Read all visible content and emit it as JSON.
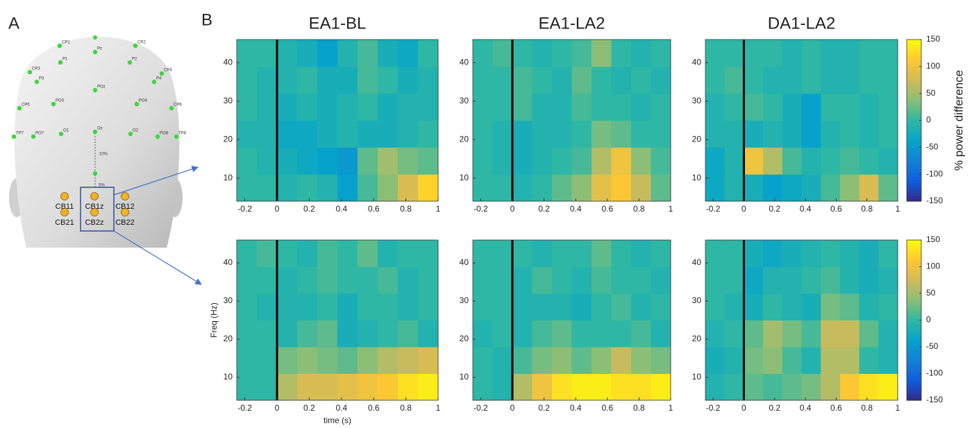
{
  "panel_labels": [
    "A",
    "B"
  ],
  "electrodes": {
    "scalp_labels": [
      "CP1",
      "CP2",
      "Pz",
      "P1",
      "P2",
      "CP3",
      "CP4",
      "P3",
      "P4",
      "POz",
      "PO3",
      "PO4",
      "CP5",
      "CP6",
      "PO7",
      "O1",
      "Oz",
      "O2",
      "PO8",
      "TP7",
      "TP8"
    ],
    "spacing_labels": [
      "10%",
      "5%"
    ],
    "cerebellar_labels": [
      "CB11",
      "CB1z",
      "CB12",
      "CB21",
      "CB2z",
      "CB22"
    ]
  },
  "chart_data": [
    {
      "type": "heatmap",
      "title": "EA1-BL",
      "colormap": "parula",
      "clim": [
        -150,
        150
      ],
      "event_x": 0,
      "xlim": [
        -0.25,
        1.0
      ],
      "xticks": [
        -0.2,
        0,
        0.2,
        0.4,
        0.6,
        0.8,
        1
      ],
      "ylim": [
        4,
        46
      ],
      "yticks": [
        10,
        20,
        30,
        40
      ],
      "xbins": [
        -0.25,
        -0.125,
        0,
        0.125,
        0.25,
        0.375,
        0.5,
        0.625,
        0.75,
        0.875,
        1.0
      ],
      "ybins": [
        4,
        11,
        18,
        25,
        32,
        39,
        46
      ],
      "z": [
        [
          0,
          0,
          -10,
          0,
          -10,
          -40,
          10,
          40,
          80,
          120
        ],
        [
          0,
          -10,
          -20,
          -30,
          -40,
          -50,
          20,
          50,
          30,
          20
        ],
        [
          -10,
          -10,
          -30,
          -30,
          -20,
          -10,
          -20,
          -20,
          -10,
          0
        ],
        [
          0,
          -10,
          -20,
          -10,
          -20,
          -10,
          0,
          -20,
          -10,
          -10
        ],
        [
          0,
          -10,
          -10,
          0,
          -20,
          -20,
          10,
          0,
          -20,
          -10
        ],
        [
          0,
          0,
          -10,
          -20,
          -40,
          -10,
          10,
          -20,
          -30,
          0
        ]
      ]
    },
    {
      "type": "heatmap",
      "title": "EA1-LA2",
      "colormap": "parula",
      "clim": [
        -150,
        150
      ],
      "event_x": 0,
      "xlim": [
        -0.25,
        1.0
      ],
      "xticks": [
        -0.2,
        0,
        0.2,
        0.4,
        0.6,
        0.8,
        1
      ],
      "ylim": [
        4,
        46
      ],
      "yticks": [
        10,
        20,
        30,
        40
      ],
      "xbins": [
        -0.25,
        -0.125,
        0,
        0.125,
        0.25,
        0.375,
        0.5,
        0.625,
        0.75,
        0.875,
        1.0
      ],
      "ybins": [
        4,
        11,
        18,
        25,
        32,
        39,
        46
      ],
      "z": [
        [
          0,
          0,
          -10,
          0,
          20,
          40,
          90,
          110,
          70,
          20
        ],
        [
          0,
          -10,
          -20,
          -10,
          0,
          10,
          60,
          100,
          40,
          10
        ],
        [
          0,
          -10,
          -20,
          -10,
          -10,
          0,
          30,
          20,
          0,
          0
        ],
        [
          0,
          0,
          10,
          -10,
          -10,
          10,
          0,
          0,
          -10,
          0
        ],
        [
          0,
          0,
          10,
          0,
          -10,
          20,
          0,
          -10,
          0,
          -10
        ],
        [
          0,
          10,
          0,
          -10,
          0,
          10,
          40,
          0,
          -10,
          0
        ]
      ]
    },
    {
      "type": "heatmap",
      "title": "DA1-LA2",
      "colormap": "parula",
      "clim": [
        -150,
        150
      ],
      "event_x": 0,
      "xlim": [
        -0.25,
        1.0
      ],
      "xticks": [
        -0.2,
        0,
        0.2,
        0.4,
        0.6,
        0.8,
        1
      ],
      "ylim": [
        4,
        46
      ],
      "yticks": [
        10,
        20,
        30,
        40
      ],
      "xbins": [
        -0.25,
        -0.125,
        0,
        0.125,
        0.25,
        0.375,
        0.5,
        0.625,
        0.75,
        0.875,
        1.0
      ],
      "ybins": [
        4,
        11,
        18,
        25,
        32,
        39,
        46
      ],
      "z": [
        [
          -30,
          -10,
          -20,
          -40,
          -30,
          -20,
          10,
          40,
          80,
          20
        ],
        [
          -30,
          -10,
          100,
          60,
          10,
          -10,
          0,
          10,
          0,
          -10
        ],
        [
          -10,
          -10,
          -20,
          -10,
          -20,
          -40,
          -10,
          0,
          -10,
          0
        ],
        [
          -10,
          0,
          10,
          0,
          -20,
          -40,
          0,
          0,
          -10,
          0
        ],
        [
          0,
          10,
          0,
          -10,
          -10,
          0,
          -10,
          -10,
          0,
          0
        ],
        [
          0,
          0,
          0,
          0,
          -10,
          0,
          -10,
          -10,
          0,
          0
        ]
      ],
      "colorbar_ticks": [
        -150,
        -100,
        -50,
        0,
        50,
        100,
        150
      ],
      "colorbar_label": "% power difference"
    },
    {
      "type": "heatmap",
      "colormap": "parula",
      "clim": [
        -150,
        150
      ],
      "event_x": 0,
      "xlabel": "time (s)",
      "ylabel": "Freq (Hz)",
      "xlim": [
        -0.25,
        1.0
      ],
      "xticks": [
        -0.2,
        0,
        0.2,
        0.4,
        0.6,
        0.8,
        1
      ],
      "ylim": [
        4,
        46
      ],
      "yticks": [
        10,
        20,
        30,
        40
      ],
      "xbins": [
        -0.25,
        -0.125,
        0,
        0.125,
        0.25,
        0.375,
        0.5,
        0.625,
        0.75,
        0.875,
        1.0
      ],
      "ybins": [
        4,
        11,
        18,
        25,
        32,
        39,
        46
      ],
      "z": [
        [
          0,
          0,
          60,
          80,
          80,
          90,
          100,
          110,
          130,
          140
        ],
        [
          0,
          0,
          30,
          40,
          30,
          20,
          40,
          60,
          70,
          80
        ],
        [
          0,
          0,
          -10,
          10,
          20,
          -20,
          -10,
          0,
          10,
          -10
        ],
        [
          0,
          -10,
          -10,
          -10,
          0,
          -20,
          0,
          0,
          -10,
          0
        ],
        [
          0,
          0,
          -10,
          0,
          10,
          0,
          0,
          10,
          -10,
          0
        ],
        [
          0,
          10,
          0,
          -10,
          10,
          0,
          20,
          -10,
          0,
          0
        ]
      ]
    },
    {
      "type": "heatmap",
      "colormap": "parula",
      "clim": [
        -150,
        150
      ],
      "event_x": 0,
      "xlim": [
        -0.25,
        1.0
      ],
      "xticks": [
        -0.2,
        0,
        0.2,
        0.4,
        0.6,
        0.8,
        1
      ],
      "ylim": [
        4,
        46
      ],
      "yticks": [
        10,
        20,
        30,
        40
      ],
      "xbins": [
        -0.25,
        -0.125,
        0,
        0.125,
        0.25,
        0.375,
        0.5,
        0.625,
        0.75,
        0.875,
        1.0
      ],
      "ybins": [
        4,
        11,
        18,
        25,
        32,
        39,
        46
      ],
      "z": [
        [
          0,
          -10,
          60,
          100,
          130,
          140,
          140,
          130,
          130,
          140
        ],
        [
          0,
          -10,
          10,
          30,
          40,
          20,
          40,
          70,
          40,
          30
        ],
        [
          -10,
          0,
          -10,
          10,
          20,
          0,
          0,
          0,
          10,
          -10
        ],
        [
          0,
          0,
          -10,
          -10,
          -10,
          -20,
          0,
          10,
          -10,
          0
        ],
        [
          0,
          0,
          -10,
          10,
          0,
          -10,
          10,
          0,
          0,
          -10
        ],
        [
          0,
          0,
          0,
          -10,
          0,
          0,
          20,
          0,
          -10,
          0
        ]
      ]
    },
    {
      "type": "heatmap",
      "colormap": "parula",
      "clim": [
        -150,
        150
      ],
      "event_x": 0,
      "xlim": [
        -0.25,
        1.0
      ],
      "xticks": [
        -0.2,
        0,
        0.2,
        0.4,
        0.6,
        0.8,
        1
      ],
      "ylim": [
        4,
        46
      ],
      "yticks": [
        10,
        20,
        30,
        40
      ],
      "xbins": [
        -0.25,
        -0.125,
        0,
        0.125,
        0.25,
        0.375,
        0.5,
        0.625,
        0.75,
        0.875,
        1.0
      ],
      "ybins": [
        4,
        11,
        18,
        25,
        32,
        39,
        46
      ],
      "z": [
        [
          -10,
          0,
          20,
          10,
          20,
          30,
          60,
          110,
          130,
          140
        ],
        [
          -20,
          -10,
          30,
          40,
          10,
          -10,
          60,
          60,
          0,
          -10
        ],
        [
          -10,
          0,
          20,
          50,
          30,
          10,
          70,
          70,
          20,
          -10
        ],
        [
          0,
          -10,
          -20,
          0,
          -10,
          -20,
          30,
          20,
          -10,
          0
        ],
        [
          0,
          0,
          -30,
          -10,
          -10,
          0,
          10,
          -10,
          -20,
          -10
        ],
        [
          0,
          0,
          -20,
          -30,
          -20,
          -10,
          0,
          -10,
          -20,
          0
        ]
      ],
      "colorbar_ticks": [
        -150,
        -100,
        -50,
        0,
        50,
        100,
        150
      ]
    }
  ]
}
